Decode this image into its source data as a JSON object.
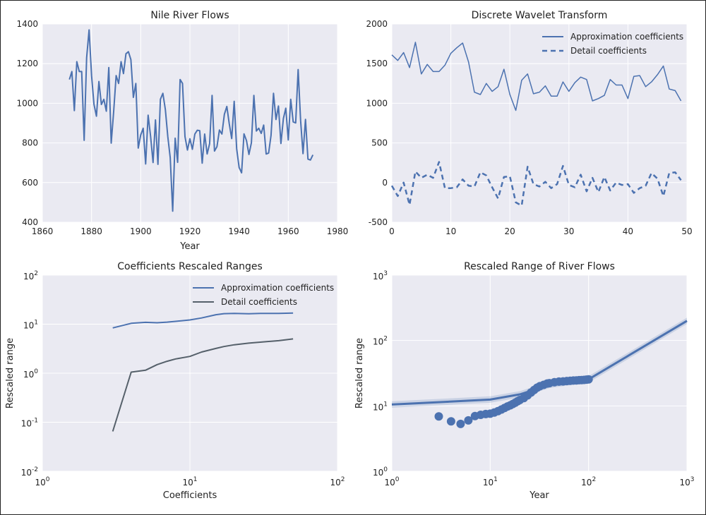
{
  "chart_data": [
    {
      "type": "line",
      "title": "Nile River Flows",
      "xlabel": "Year",
      "ylabel": "",
      "xlim": [
        1860,
        1980
      ],
      "ylim": [
        400,
        1400
      ],
      "xticks": [
        "1860",
        "1880",
        "1900",
        "1920",
        "1940",
        "1960",
        "1980"
      ],
      "yticks": [
        "400",
        "600",
        "800",
        "1000",
        "1200",
        "1400"
      ],
      "grid": true,
      "x_start": 1871,
      "series": [
        {
          "color": "#4c72b0",
          "values": [
            1120,
            1160,
            963,
            1210,
            1160,
            1160,
            813,
            1230,
            1370,
            1140,
            995,
            935,
            1110,
            994,
            1020,
            960,
            1180,
            799,
            958,
            1140,
            1100,
            1210,
            1150,
            1250,
            1260,
            1220,
            1030,
            1100,
            774,
            840,
            874,
            694,
            940,
            833,
            701,
            916,
            692,
            1020,
            1050,
            969,
            831,
            726,
            456,
            824,
            702,
            1120,
            1100,
            832,
            764,
            821,
            768,
            845,
            864,
            862,
            698,
            845,
            744,
            796,
            1040,
            759,
            781,
            865,
            845,
            944,
            984,
            897,
            822,
            1010,
            771,
            676,
            649,
            846,
            812,
            742,
            801,
            1040,
            860,
            874,
            848,
            890,
            744,
            749,
            838,
            1050,
            918,
            986,
            797,
            923,
            975,
            815,
            1020,
            906,
            901,
            1170,
            912,
            746,
            919,
            718,
            714,
            740
          ]
        }
      ]
    },
    {
      "type": "line",
      "title": "Discrete Wavelet Transform",
      "xlabel": "",
      "ylabel": "",
      "xlim": [
        0,
        50
      ],
      "ylim": [
        -500,
        2000
      ],
      "xticks": [
        "0",
        "10",
        "20",
        "30",
        "40",
        "50"
      ],
      "yticks": [
        "-500",
        "0",
        "500",
        "1000",
        "1500",
        "2000"
      ],
      "grid": true,
      "legend": "top-right",
      "series": [
        {
          "name": "Approximation coefficients",
          "style": "solid",
          "color": "#4c72b0",
          "values": [
            1610,
            1540,
            1640,
            1450,
            1770,
            1370,
            1490,
            1400,
            1400,
            1480,
            1630,
            1700,
            1760,
            1520,
            1140,
            1110,
            1250,
            1150,
            1210,
            1430,
            1110,
            910,
            1290,
            1370,
            1120,
            1140,
            1220,
            1090,
            1090,
            1270,
            1150,
            1260,
            1330,
            1300,
            1030,
            1060,
            1100,
            1300,
            1230,
            1230,
            1060,
            1340,
            1350,
            1210,
            1270,
            1360,
            1470,
            1180,
            1160,
            1030
          ]
        },
        {
          "name": "Detail coefficients",
          "style": "dashed",
          "color": "#4c72b0",
          "values": [
            -40,
            -170,
            0,
            -280,
            140,
            60,
            100,
            60,
            260,
            -70,
            -70,
            -60,
            40,
            -40,
            -50,
            130,
            90,
            -60,
            -200,
            70,
            80,
            -250,
            -290,
            200,
            -20,
            -50,
            10,
            -70,
            -20,
            210,
            -30,
            -60,
            100,
            -110,
            60,
            -120,
            70,
            -100,
            0,
            -30,
            -20,
            -130,
            -70,
            -40,
            120,
            50,
            -170,
            120,
            130,
            30
          ]
        }
      ]
    },
    {
      "type": "line",
      "title": "Coefficients Rescaled Ranges",
      "xlabel": "Coefficients",
      "ylabel": "Rescaled range",
      "xscale": "log",
      "yscale": "log",
      "xlim": [
        1,
        100
      ],
      "ylim": [
        0.01,
        100
      ],
      "xtick_labels": [
        {
          "base": "10",
          "exp": "0"
        },
        {
          "base": "10",
          "exp": "1"
        },
        {
          "base": "10",
          "exp": "2"
        }
      ],
      "ytick_labels": [
        {
          "base": "10",
          "exp": "-2"
        },
        {
          "base": "10",
          "exp": "-1"
        },
        {
          "base": "10",
          "exp": "0"
        },
        {
          "base": "10",
          "exp": "1"
        },
        {
          "base": "10",
          "exp": "2"
        }
      ],
      "grid": true,
      "legend": "top-right",
      "series": [
        {
          "name": "Approximation coefficients",
          "color": "#4c72b0",
          "x": [
            3,
            4,
            5,
            6,
            7,
            8,
            10,
            12,
            15,
            17,
            20,
            25,
            30,
            40,
            50
          ],
          "values": [
            8.4,
            10.4,
            10.9,
            10.7,
            11.0,
            11.4,
            12.2,
            13.4,
            15.6,
            16.4,
            16.6,
            16.3,
            16.6,
            16.6,
            16.8
          ]
        },
        {
          "name": "Detail coefficients",
          "color": "#55606a",
          "x": [
            3,
            4,
            5,
            6,
            7,
            8,
            10,
            12,
            15,
            17,
            20,
            25,
            30,
            40,
            50
          ],
          "values": [
            0.065,
            1.05,
            1.15,
            1.5,
            1.75,
            1.95,
            2.2,
            2.7,
            3.2,
            3.5,
            3.8,
            4.1,
            4.3,
            4.6,
            5.0
          ]
        }
      ]
    },
    {
      "type": "scatter",
      "title": "Rescaled Range of River Flows",
      "xlabel": "Year",
      "ylabel": "Rescaled range",
      "xscale": "log",
      "yscale": "log",
      "xlim": [
        1,
        1000
      ],
      "ylim": [
        1,
        1000
      ],
      "xtick_labels": [
        {
          "base": "10",
          "exp": "0"
        },
        {
          "base": "10",
          "exp": "1"
        },
        {
          "base": "10",
          "exp": "2"
        },
        {
          "base": "10",
          "exp": "3"
        }
      ],
      "ytick_labels": [
        {
          "base": "10",
          "exp": "0"
        },
        {
          "base": "10",
          "exp": "1"
        },
        {
          "base": "10",
          "exp": "2"
        },
        {
          "base": "10",
          "exp": "3"
        }
      ],
      "grid": true,
      "points": {
        "color": "#4c72b0",
        "x": [
          3,
          4,
          5,
          6,
          7,
          8,
          9,
          10,
          11,
          12,
          13,
          14,
          15,
          16,
          17,
          18,
          19,
          20,
          22,
          24,
          26,
          28,
          30,
          32,
          35,
          38,
          40,
          45,
          50,
          55,
          60,
          65,
          70,
          75,
          80,
          85,
          90,
          95,
          100
        ],
        "y": [
          6.9,
          5.8,
          5.3,
          6.0,
          7.0,
          7.3,
          7.5,
          7.6,
          7.9,
          8.3,
          8.8,
          9.3,
          9.8,
          10.2,
          10.7,
          11.2,
          11.8,
          12.3,
          13.2,
          14.5,
          16.0,
          17.5,
          19.0,
          20.0,
          21.0,
          22.0,
          22.3,
          23.0,
          23.5,
          23.7,
          24.0,
          24.2,
          24.4,
          24.5,
          24.7,
          24.8,
          25.0,
          25.2,
          25.4
        ]
      },
      "fit_line": {
        "color": "#4c72b0",
        "x": [
          1,
          10,
          20,
          40,
          100,
          1000
        ],
        "y": [
          10.5,
          12.5,
          15.0,
          21.0,
          25.5,
          200
        ]
      }
    }
  ]
}
